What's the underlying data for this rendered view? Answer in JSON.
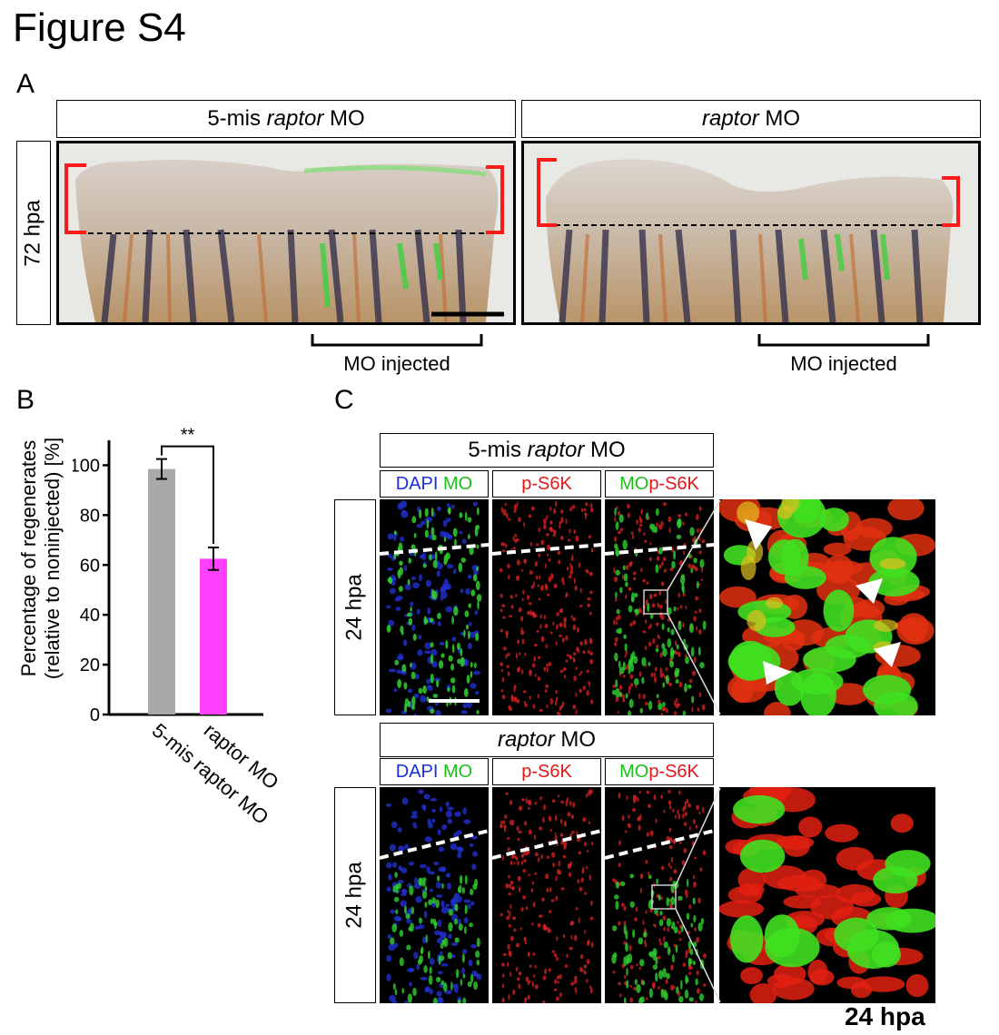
{
  "figure": {
    "title": "Figure S4"
  },
  "panelA": {
    "label": "A",
    "left_header": {
      "prefix": "5-mis ",
      "gene": "raptor",
      "suffix": " MO"
    },
    "right_header": {
      "gene": "raptor",
      "suffix": " MO"
    },
    "row_label": "72 hpa",
    "injected_label": "MO injected"
  },
  "panelB": {
    "label": "B",
    "significance": "**",
    "ylabel_line1": "Percentage of regenerates",
    "ylabel_line2": "(relative to noninjected) [%]"
  },
  "panelC": {
    "label": "C",
    "top_header": {
      "prefix": "5-mis ",
      "gene": "raptor",
      "suffix": " MO"
    },
    "bottom_header": {
      "gene": "raptor",
      "suffix": " MO"
    },
    "ch1": {
      "a": "DAPI",
      "b": " MO"
    },
    "ch2": "p-S6K",
    "ch3": {
      "a": "MO",
      "b": "p-S6K"
    },
    "row_label": "24 hpa",
    "bottom_caption": "24 hpa"
  },
  "chart_data": {
    "type": "bar",
    "categories": [
      "5-mis raptor MO",
      "raptor MO"
    ],
    "values": [
      98.5,
      62.5
    ],
    "errors": [
      4,
      4.5
    ],
    "colors": [
      "#a9a9a9",
      "#ff40ff"
    ],
    "ylim": [
      0,
      110
    ],
    "yticks": [
      0,
      20,
      40,
      60,
      80,
      100
    ],
    "ylabel": "Percentage of regenerates (relative to noninjected) [%]",
    "grid": false
  }
}
